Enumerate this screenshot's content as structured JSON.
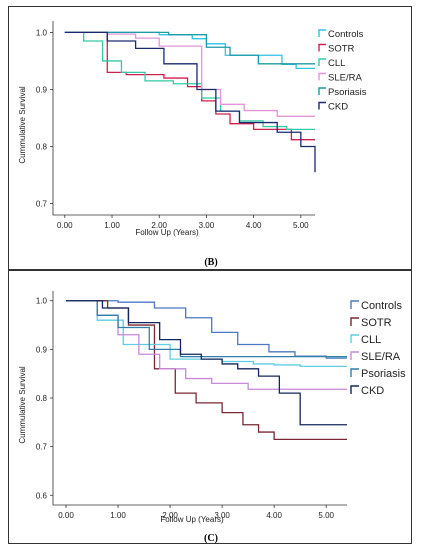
{
  "chart_data": [
    {
      "type": "line",
      "panel_label": "(B)",
      "xlabel": "Follow Up (Years)",
      "ylabel": "Cummulative Survival",
      "xlim": [
        -0.25,
        5.3
      ],
      "ylim": [
        0.68,
        1.02
      ],
      "xticks": [
        "0.00",
        "1.00",
        "2.00",
        "3.00",
        "4.00",
        "5.00"
      ],
      "yticks": [
        "1.0",
        "0.9",
        "0.8",
        "0.7"
      ],
      "legend_position": "right",
      "series": [
        {
          "name": "Controls",
          "color": "#2ec4e6",
          "x": [
            0,
            1.4,
            2.0,
            2.7,
            3.0,
            3.4,
            4.6,
            4.9,
            5.3
          ],
          "y": [
            1.0,
            1.0,
            0.996,
            0.989,
            0.98,
            0.96,
            0.944,
            0.937,
            0.937
          ]
        },
        {
          "name": "SOTR",
          "color": "#d0214c",
          "x": [
            0,
            0.6,
            0.9,
            1.3,
            2.1,
            2.6,
            2.9,
            3.2,
            3.5,
            4.0,
            4.8,
            5.3
          ],
          "y": [
            1.0,
            1.0,
            0.93,
            0.926,
            0.92,
            0.905,
            0.88,
            0.857,
            0.84,
            0.83,
            0.812,
            0.812
          ]
        },
        {
          "name": "CLL",
          "color": "#35c9a8",
          "x": [
            0,
            0.4,
            0.8,
            1.2,
            1.7,
            2.3,
            2.9,
            3.3,
            3.7,
            4.2,
            4.7,
            5.3
          ],
          "y": [
            1.0,
            0.985,
            0.95,
            0.93,
            0.915,
            0.91,
            0.885,
            0.862,
            0.845,
            0.835,
            0.83,
            0.83
          ]
        },
        {
          "name": "SLE/RA",
          "color": "#e296d8",
          "x": [
            0,
            0.9,
            1.5,
            2.0,
            2.9,
            3.3,
            3.8,
            4.5,
            5.3
          ],
          "y": [
            1.0,
            0.997,
            0.99,
            0.976,
            0.9,
            0.874,
            0.863,
            0.853,
            0.853
          ]
        },
        {
          "name": "Psoriasis",
          "color": "#1b9aa8",
          "x": [
            0,
            2.2,
            3.0,
            3.5,
            4.1,
            5.3
          ],
          "y": [
            1.0,
            0.996,
            0.974,
            0.96,
            0.945,
            0.945
          ]
        },
        {
          "name": "CKD",
          "color": "#1a2a6e",
          "x": [
            0,
            0.9,
            1.5,
            2.1,
            2.8,
            3.2,
            3.7,
            4.5,
            5.0,
            5.3
          ],
          "y": [
            1.0,
            0.985,
            0.972,
            0.945,
            0.9,
            0.862,
            0.842,
            0.825,
            0.8,
            0.755
          ]
        }
      ]
    },
    {
      "type": "line",
      "panel_label": "(C)",
      "xlabel": "Follow Up (Years)",
      "ylabel": "Cummulative Survival",
      "xlim": [
        -0.25,
        5.4
      ],
      "ylim": [
        0.58,
        1.02
      ],
      "xticks": [
        "0.00",
        "1.00",
        "2.00",
        "3.00",
        "4.00",
        "5.00"
      ],
      "yticks": [
        "1.0",
        "0.9",
        "0.8",
        "0.7",
        "0.6"
      ],
      "legend_position": "right",
      "series": [
        {
          "name": "Controls",
          "color": "#4b78c0",
          "x": [
            0,
            1.0,
            1.7,
            2.3,
            2.8,
            3.3,
            3.9,
            4.4,
            5.0,
            5.4
          ],
          "y": [
            1.0,
            0.997,
            0.985,
            0.965,
            0.935,
            0.91,
            0.895,
            0.886,
            0.882,
            0.882
          ]
        },
        {
          "name": "SOTR",
          "color": "#7a2835",
          "x": [
            0,
            0.8,
            1.2,
            1.7,
            2.1,
            2.5,
            3.0,
            3.4,
            3.7,
            4.0,
            5.4
          ],
          "y": [
            1.0,
            0.985,
            0.95,
            0.86,
            0.81,
            0.79,
            0.77,
            0.745,
            0.73,
            0.715,
            0.715
          ]
        },
        {
          "name": "CLL",
          "color": "#5fcde4",
          "x": [
            0,
            0.6,
            1.1,
            2.0,
            3.0,
            3.6,
            4.0,
            4.5,
            5.4
          ],
          "y": [
            1.0,
            0.96,
            0.91,
            0.88,
            0.875,
            0.87,
            0.868,
            0.865,
            0.865
          ]
        },
        {
          "name": "SLE/RA",
          "color": "#c78ad8",
          "x": [
            0,
            0.6,
            1.0,
            1.4,
            1.8,
            2.3,
            2.8,
            3.5,
            5.4
          ],
          "y": [
            1.0,
            0.97,
            0.93,
            0.89,
            0.86,
            0.84,
            0.83,
            0.818,
            0.818
          ]
        },
        {
          "name": "Psoriasis",
          "color": "#2f7fa8",
          "x": [
            0,
            0.6,
            1.0,
            1.6,
            2.2,
            5.4
          ],
          "y": [
            1.0,
            0.97,
            0.945,
            0.9,
            0.885,
            0.885
          ]
        },
        {
          "name": "CKD",
          "color": "#14275c",
          "x": [
            0,
            0.7,
            1.2,
            1.8,
            2.2,
            2.6,
            3.0,
            3.3,
            3.7,
            4.1,
            4.5,
            5.4
          ],
          "y": [
            1.0,
            0.985,
            0.955,
            0.92,
            0.89,
            0.88,
            0.87,
            0.86,
            0.845,
            0.81,
            0.745,
            0.745
          ]
        }
      ]
    }
  ]
}
